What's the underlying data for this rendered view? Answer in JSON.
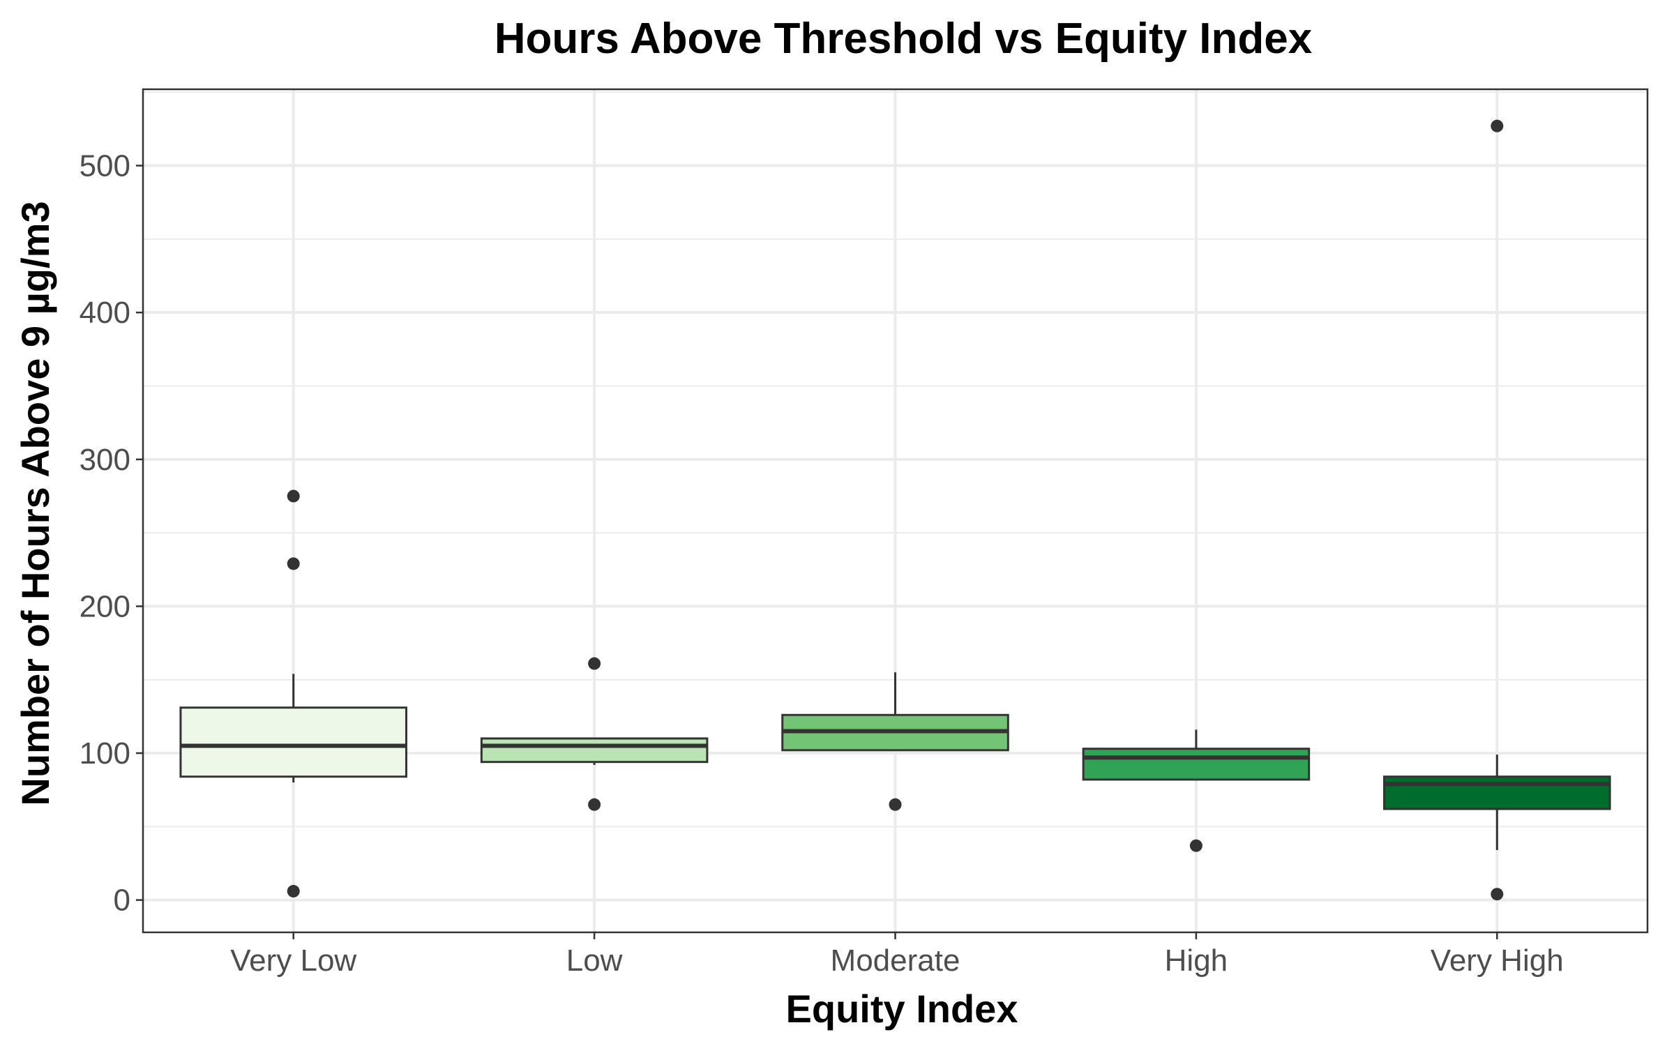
{
  "chart_data": {
    "type": "boxplot",
    "title": "Hours Above Threshold vs Equity Index",
    "xlabel": "Equity Index",
    "ylabel": "Number of Hours Above 9 µg/m3",
    "ylim": [
      -22,
      552
    ],
    "yticks": [
      0,
      100,
      200,
      300,
      400,
      500
    ],
    "grid": true,
    "categories": [
      "Very Low",
      "Low",
      "Moderate",
      "High",
      "Very High"
    ],
    "boxes": [
      {
        "category": "Very Low",
        "whisker_low": 80,
        "q1": 84,
        "median": 105,
        "q3": 131,
        "whisker_high": 154,
        "outliers": [
          6,
          229,
          275
        ]
      },
      {
        "category": "Low",
        "whisker_low": 92,
        "q1": 94,
        "median": 105,
        "q3": 110,
        "whisker_high": 110,
        "outliers": [
          65,
          161
        ]
      },
      {
        "category": "Moderate",
        "whisker_low": 102,
        "q1": 102,
        "median": 115,
        "q3": 126,
        "whisker_high": 155,
        "outliers": [
          65
        ]
      },
      {
        "category": "High",
        "whisker_low": 82,
        "q1": 82,
        "median": 97,
        "q3": 103,
        "whisker_high": 116,
        "outliers": [
          37
        ]
      },
      {
        "category": "Very High",
        "whisker_low": 34,
        "q1": 62,
        "median": 79,
        "q3": 84,
        "whisker_high": 99,
        "outliers": [
          4,
          527
        ]
      }
    ],
    "colors": {
      "fills": [
        "#edf8e9",
        "#bae4b3",
        "#74c476",
        "#31a354",
        "#006d2c"
      ],
      "stroke": "#333333",
      "grid": "#ebebeb",
      "panel_border": "#333333"
    }
  }
}
